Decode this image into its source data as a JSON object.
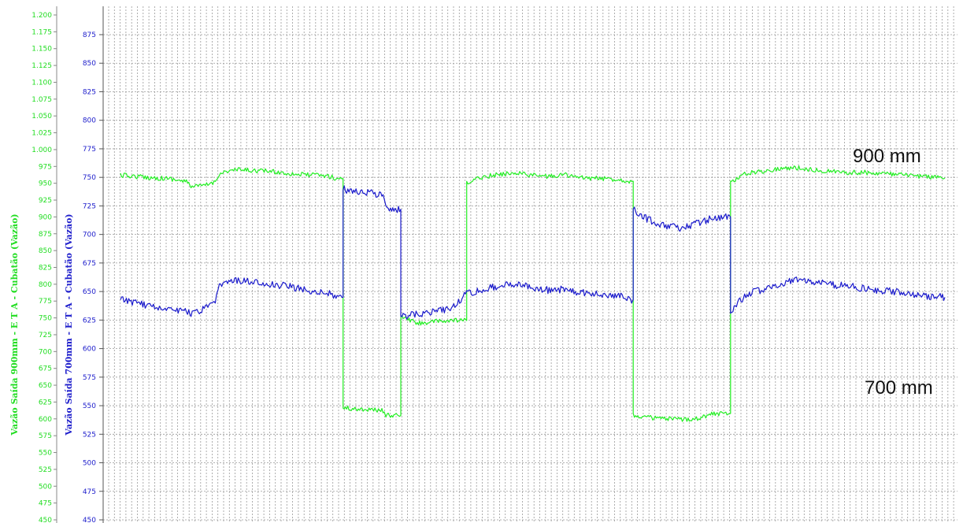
{
  "chart_data": {
    "type": "line",
    "grid": true,
    "colors": {
      "green": "#22ee22",
      "blue": "#1a1acc"
    },
    "axes": {
      "left_green": {
        "label": "Vazão Saída 900mm - E T A - Cubatão (Vazão)",
        "range": [
          450,
          1200
        ],
        "step": 25,
        "tick_labels": [
          "1.200",
          "1.175",
          "1.150",
          "1.125",
          "1.100",
          "1.075",
          "1.050",
          "1.025",
          "1.000",
          "975",
          "950",
          "925",
          "900",
          "875",
          "850",
          "825",
          "800",
          "775",
          "750",
          "725",
          "700",
          "675",
          "650",
          "625",
          "600",
          "575",
          "550",
          "525",
          "500",
          "475",
          "450"
        ]
      },
      "left_blue": {
        "label": "Vazão Saída 700mm - E T A - Cubatão (Vazão)",
        "range": [
          450,
          890
        ],
        "step": 25,
        "tick_labels": [
          "875",
          "850",
          "825",
          "800",
          "775",
          "750",
          "725",
          "700",
          "675",
          "650",
          "625",
          "600",
          "575",
          "550",
          "525",
          "500",
          "475",
          "450"
        ]
      }
    },
    "annotations": [
      {
        "text": "900 mm",
        "series": "green"
      },
      {
        "text": "700 mm",
        "series": "blue"
      }
    ],
    "series": [
      {
        "axis": "left_green",
        "color": "#22ee22",
        "x": [
          0,
          2,
          4,
          6,
          8,
          8.7,
          10,
          11.5,
          12,
          14,
          16,
          18,
          20,
          22,
          24,
          25.5,
          26,
          27,
          28,
          30,
          32,
          32.2,
          34,
          36,
          38,
          40,
          42,
          44,
          46,
          48,
          50,
          52,
          54,
          55.6,
          56,
          58,
          60,
          62,
          62.2,
          64,
          66,
          68,
          70,
          72,
          74,
          76,
          78,
          80,
          82,
          84,
          86,
          88,
          90,
          92,
          94,
          96,
          98,
          100
        ],
        "y": [
          962,
          960,
          958,
          957,
          952,
          945,
          946,
          952,
          965,
          970,
          969,
          968,
          965,
          963,
          962,
          960,
          957,
          617,
          615,
          614,
          612,
          605,
          752,
          742,
          744,
          746,
          950,
          960,
          963,
          966,
          962,
          960,
          963,
          958,
          958,
          957,
          956,
          953,
          605,
          602,
          600,
          599,
          601,
          608,
          952,
          965,
          968,
          972,
          973,
          970,
          968,
          966,
          966,
          965,
          963,
          961,
          960,
          958
        ]
      },
      {
        "axis": "left_blue",
        "color": "#1a1acc",
        "x": [
          0,
          2,
          4,
          6,
          8,
          8.7,
          10,
          11.5,
          12,
          14,
          16,
          18,
          20,
          22,
          24,
          25.5,
          26,
          27,
          28,
          30,
          32,
          32.2,
          34,
          36,
          38,
          40,
          42,
          44,
          46,
          48,
          50,
          52,
          54,
          55.6,
          56,
          58,
          60,
          62,
          62.2,
          64,
          66,
          68,
          70,
          72,
          74,
          76,
          78,
          80,
          82,
          84,
          86,
          88,
          90,
          92,
          94,
          96,
          98,
          100
        ],
        "y": [
          643,
          640,
          637,
          635,
          633,
          630,
          634,
          640,
          655,
          660,
          658,
          656,
          655,
          652,
          650,
          648,
          645,
          740,
          738,
          737,
          734,
          722,
          628,
          630,
          633,
          635,
          648,
          652,
          655,
          657,
          654,
          651,
          652,
          648,
          649,
          648,
          647,
          643,
          722,
          713,
          708,
          705,
          710,
          715,
          633,
          648,
          652,
          657,
          660,
          659,
          656,
          655,
          653,
          651,
          650,
          648,
          646,
          645
        ]
      }
    ]
  }
}
